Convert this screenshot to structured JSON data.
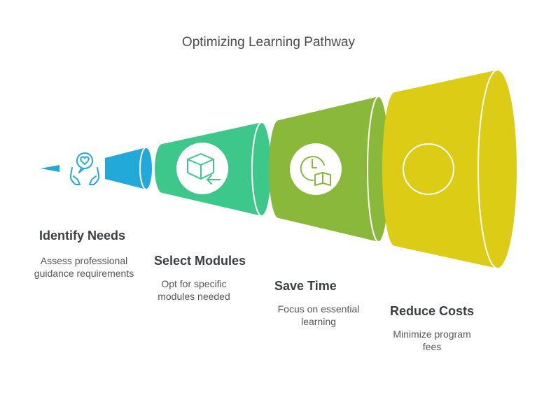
{
  "title": "Optimizing Learning Pathway",
  "colors": {
    "stage1": "#22a9da",
    "stage2": "#3dc78a",
    "stage3": "#8ab83a",
    "stage4": "#ddcc16"
  },
  "stages": [
    {
      "title": "Identify Needs",
      "description": "Assess professional guidance requirements",
      "icon": "heart-hands-icon"
    },
    {
      "title": "Select Modules",
      "description": "Opt for specific modules needed",
      "icon": "box-arrow-icon"
    },
    {
      "title": "Save Time",
      "description": "Focus on essential learning",
      "icon": "clock-book-icon"
    },
    {
      "title": "Reduce Costs",
      "description": "Minimize program fees",
      "icon": "circle-icon"
    }
  ]
}
